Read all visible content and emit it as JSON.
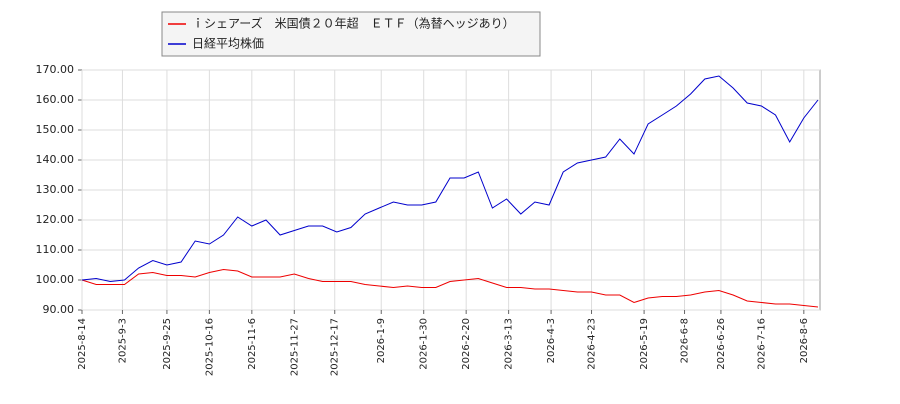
{
  "chart_data": {
    "type": "line",
    "x": [
      "2025-8-14",
      "2025-8-21",
      "2025-8-28",
      "2025-9-4",
      "2025-9-11",
      "2025-9-18",
      "2025-9-25",
      "2025-10-2",
      "2025-10-9",
      "2025-10-16",
      "2025-10-23",
      "2025-10-30",
      "2025-11-6",
      "2025-11-13",
      "2025-11-20",
      "2025-11-27",
      "2025-12-4",
      "2025-12-11",
      "2025-12-18",
      "2025-12-25",
      "2026-1-1",
      "2026-1-8",
      "2026-1-15",
      "2026-1-22",
      "2026-1-29",
      "2026-2-5",
      "2026-2-12",
      "2026-2-19",
      "2026-2-26",
      "2026-3-5",
      "2026-3-12",
      "2026-3-19",
      "2026-3-26",
      "2026-4-2",
      "2026-4-9",
      "2026-4-16",
      "2026-4-23",
      "2026-4-30",
      "2026-5-7",
      "2026-5-14",
      "2026-5-21",
      "2026-5-28",
      "2026-6-4",
      "2026-6-11",
      "2026-6-18",
      "2026-6-25",
      "2026-7-2",
      "2026-7-9",
      "2026-7-16",
      "2026-7-23",
      "2026-7-30",
      "2026-8-6",
      "2026-8-13"
    ],
    "series": [
      {
        "name": "ｉシェアーズ　米国債２０年超　ＥＴＦ（為替ヘッジあり）",
        "color": "#ee0000",
        "values": [
          100,
          98.5,
          98.5,
          98.5,
          102,
          102.5,
          101.5,
          101.5,
          101,
          102.5,
          103.5,
          103,
          101,
          101,
          101,
          102,
          100.5,
          99.5,
          99.5,
          99.5,
          98.5,
          98,
          97.5,
          98,
          97.5,
          97.5,
          99.5,
          100,
          100.5,
          99,
          97.5,
          97.5,
          97,
          97,
          96.5,
          96,
          96,
          95,
          95,
          92.5,
          94,
          94.5,
          94.5,
          95,
          96,
          96.5,
          95,
          93,
          92.5,
          92,
          92,
          91.5,
          91
        ]
      },
      {
        "name": "日経平均株価",
        "color": "#0000cc",
        "values": [
          100,
          100.5,
          99.5,
          100,
          104,
          106.5,
          105,
          106,
          113,
          112,
          115,
          121,
          118,
          120,
          115,
          116.5,
          118,
          118,
          116,
          117.5,
          122,
          124,
          126,
          125,
          125,
          126,
          134,
          134,
          136,
          124,
          127,
          122,
          126,
          125,
          136,
          139,
          140,
          141,
          147,
          142,
          152,
          155,
          158,
          162,
          167,
          168,
          164,
          159,
          158,
          155,
          146,
          154,
          160
        ]
      }
    ],
    "xlim": [
      "2025-8-14",
      "2026-8-14"
    ],
    "xticks": [
      "2025-8-14",
      "2025-9-3",
      "2025-9-25",
      "2025-10-16",
      "2025-11-6",
      "2025-11-27",
      "2025-12-17",
      "2026-1-9",
      "2026-1-30",
      "2026-2-20",
      "2026-3-13",
      "2026-4-3",
      "2026-4-23",
      "2026-5-19",
      "2026-6-8",
      "2026-6-26",
      "2026-7-16",
      "2026-8-6"
    ],
    "ylim": [
      90,
      170
    ],
    "yticks": [
      {
        "value": 90,
        "label": "90.00"
      },
      {
        "value": 100,
        "label": "100.00"
      },
      {
        "value": 110,
        "label": "110.00"
      },
      {
        "value": 120,
        "label": "120.00"
      },
      {
        "value": 130,
        "label": "130.00"
      },
      {
        "value": 140,
        "label": "140.00"
      },
      {
        "value": 150,
        "label": "150.00"
      },
      {
        "value": 160,
        "label": "160.00"
      },
      {
        "value": 170,
        "label": "170.00"
      }
    ],
    "grid": true
  }
}
